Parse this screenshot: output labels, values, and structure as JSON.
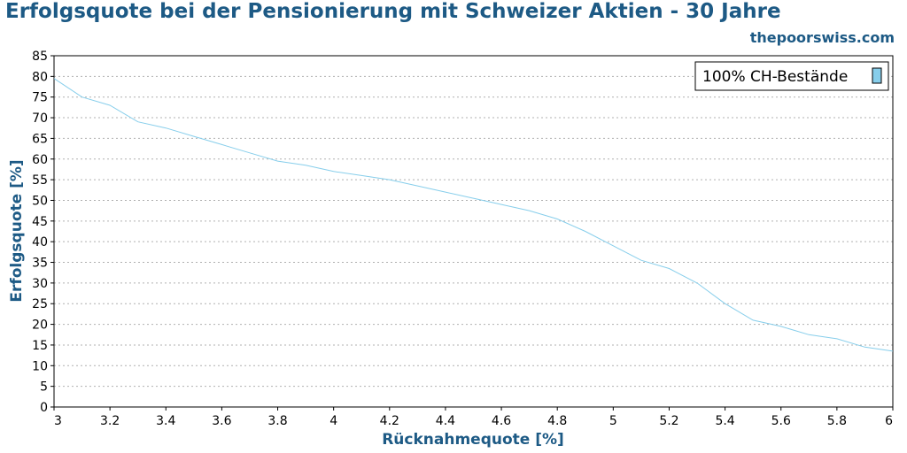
{
  "chart_data": {
    "type": "line",
    "title": "Erfolgsquote bei der Pensionierung mit Schweizer Aktien - 30 Jahre",
    "source": "thepoorswiss.com",
    "xlabel": "Rücknahmequote [%]",
    "ylabel": "Erfolgsquote [%]",
    "xlim": [
      3,
      6
    ],
    "ylim": [
      0,
      85
    ],
    "x_ticks": [
      "3",
      "3.2",
      "3.4",
      "3.6",
      "3.8",
      "4",
      "4.2",
      "4.4",
      "4.6",
      "4.8",
      "5",
      "5.2",
      "5.4",
      "5.6",
      "5.8",
      "6"
    ],
    "y_ticks": [
      "0",
      "5",
      "10",
      "15",
      "20",
      "25",
      "30",
      "35",
      "40",
      "45",
      "50",
      "55",
      "60",
      "65",
      "70",
      "75",
      "80",
      "85"
    ],
    "grid": true,
    "legend_position": "top-right",
    "series": [
      {
        "name": "100% CH-Bestände",
        "color": "#87ceeb",
        "x": [
          3.0,
          3.1,
          3.2,
          3.3,
          3.4,
          3.5,
          3.6,
          3.7,
          3.8,
          3.9,
          4.0,
          4.1,
          4.2,
          4.3,
          4.4,
          4.5,
          4.6,
          4.7,
          4.8,
          4.9,
          5.0,
          5.1,
          5.2,
          5.3,
          5.4,
          5.5,
          5.6,
          5.7,
          5.8,
          5.9,
          6.0
        ],
        "y": [
          79.5,
          75,
          73,
          69,
          67.5,
          65.5,
          63.5,
          61.5,
          59.5,
          58.5,
          57,
          56,
          55,
          53.5,
          52,
          50.5,
          49,
          47.5,
          45.5,
          42.5,
          39,
          35.5,
          33.5,
          30,
          25,
          21,
          19.5,
          17.5,
          16.5,
          14.5,
          13.5
        ]
      }
    ]
  }
}
